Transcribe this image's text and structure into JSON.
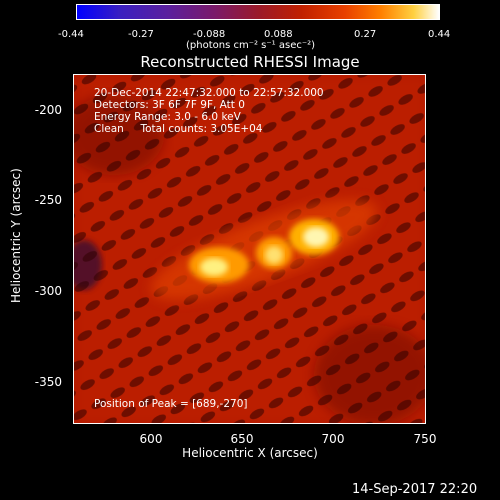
{
  "colorbar": {
    "ticks": [
      "-0.44",
      "-0.27",
      "-0.088",
      "0.088",
      "0.27",
      "0.44"
    ],
    "unit_label": "(photons cm⁻² s⁻¹ asec⁻²)"
  },
  "title": "Reconstructed RHESSI Image",
  "overlay": {
    "line1": "20-Dec-2014 22:47:32.000 to 22:57:32.000",
    "line2": "Detectors: 3F 6F 7F 9F, Att 0",
    "line3": "Energy Range: 3.0 - 6.0 keV",
    "line4": "Clean     Total counts: 3.05E+04",
    "peak": "Position of Peak = [689,-270]"
  },
  "axes": {
    "ylabel": "Heliocentric Y (arcsec)",
    "xlabel": "Heliocentric X (arcsec)",
    "yticks": [
      "-200",
      "-250",
      "-300",
      "-350"
    ],
    "xticks": [
      "600",
      "650",
      "700",
      "750"
    ]
  },
  "footer_timestamp": "14-Sep-2017 22:20"
}
